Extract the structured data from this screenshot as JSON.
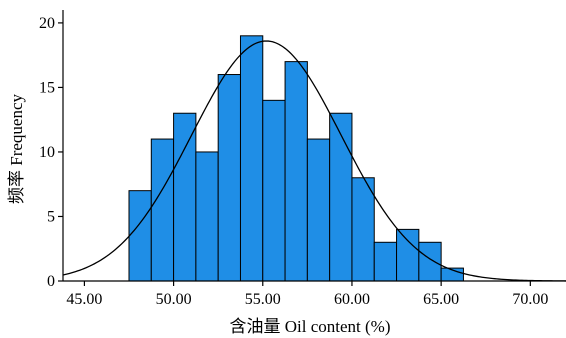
{
  "chart_data": {
    "type": "bar",
    "title": "",
    "xlabel": "含油量 Oil content (%)",
    "ylabel": "频率 Frequency",
    "xlim": [
      43.8,
      72.0
    ],
    "ylim": [
      0,
      21
    ],
    "xticks": [
      45,
      50,
      55,
      60,
      65,
      70
    ],
    "xtick_labels": [
      "45.00",
      "50.00",
      "55.00",
      "60.00",
      "65.00",
      "70.00"
    ],
    "yticks": [
      0,
      5,
      10,
      15,
      20
    ],
    "ytick_labels": [
      "0",
      "5",
      "10",
      "15",
      "20"
    ],
    "bin_start": 47.5,
    "bin_width": 1.25,
    "values": [
      7,
      11,
      13,
      10,
      16,
      19,
      14,
      17,
      11,
      13,
      8,
      3,
      4,
      3,
      1
    ],
    "bar_color": "#1f8ee6",
    "normal_curve": {
      "mean": 55.2,
      "sd": 4.2,
      "peak": 18.6
    },
    "grid": false,
    "legend": "none"
  }
}
